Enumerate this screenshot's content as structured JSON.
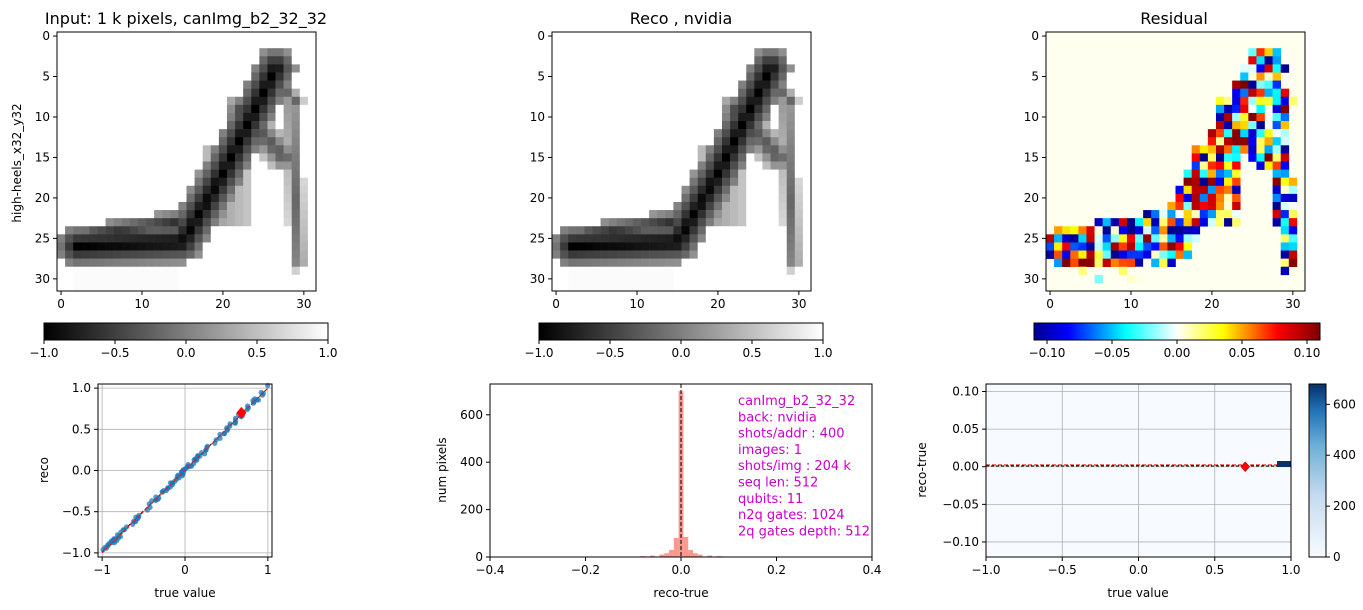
{
  "chart_data": [
    {
      "type": "heatmap",
      "title": "Input: 1 k pixels, canImg_b2_32_32",
      "ylabel": "high-heels_x32_y32",
      "xticks": [
        "0",
        "10",
        "20",
        "30"
      ],
      "yticks": [
        "0",
        "5",
        "10",
        "15",
        "20",
        "25",
        "30"
      ],
      "colorbar": {
        "range": [
          -1,
          1
        ],
        "ticks": [
          "−1.0",
          "−0.5",
          "0.0",
          "0.5",
          "1.0"
        ],
        "cmap": "gray"
      }
    },
    {
      "type": "heatmap",
      "title": "Reco , nvidia",
      "xticks": [
        "0",
        "10",
        "20",
        "30"
      ],
      "yticks": [
        "0",
        "5",
        "10",
        "15",
        "20",
        "25",
        "30"
      ],
      "colorbar": {
        "range": [
          -1,
          1
        ],
        "ticks": [
          "−1.0",
          "−0.5",
          "0.0",
          "0.5",
          "1.0"
        ],
        "cmap": "gray"
      }
    },
    {
      "type": "heatmap",
      "title": "Residual",
      "xticks": [
        "0",
        "10",
        "20",
        "30"
      ],
      "yticks": [
        "0",
        "5",
        "10",
        "15",
        "20",
        "25",
        "30"
      ],
      "colorbar": {
        "range": [
          -0.11,
          0.11
        ],
        "ticks": [
          "−0.10",
          "−0.05",
          "0.00",
          "0.05",
          "0.10"
        ],
        "cmap": "jet"
      }
    },
    {
      "type": "scatter",
      "xlabel": "true value",
      "ylabel": "reco",
      "xlim": [
        -1.05,
        1.05
      ],
      "ylim": [
        -1.05,
        1.05
      ],
      "xticks": [
        "−1",
        "0",
        "1"
      ],
      "yticks": [
        "−1.0",
        "−0.5",
        "0.0",
        "0.5",
        "1.0"
      ],
      "highlight": [
        0.68,
        0.7
      ],
      "grid": true
    },
    {
      "type": "bar",
      "xlabel": "reco-true",
      "ylabel": "num pixels",
      "xlim": [
        -0.4,
        0.4
      ],
      "ylim": [
        0,
        730
      ],
      "xticks": [
        "−0.4",
        "−0.2",
        "0.0",
        "0.2",
        "0.4"
      ],
      "yticks": [
        "0",
        "200",
        "400",
        "600"
      ],
      "centers": [
        -0.1,
        -0.08,
        -0.06,
        -0.04,
        -0.03,
        -0.02,
        -0.01,
        0.0,
        0.01,
        0.02,
        0.03,
        0.04,
        0.06,
        0.08,
        0.1
      ],
      "values": [
        2,
        4,
        6,
        10,
        16,
        30,
        80,
        700,
        85,
        30,
        16,
        10,
        6,
        4,
        2
      ],
      "annotation": [
        "canImg_b2_32_32",
        "back: nvidia",
        "shots/addr : 400",
        "images: 1",
        "shots/img : 204 k",
        "seq len: 512",
        "qubits: 11",
        "n2q gates: 1024",
        "2q gates depth: 512"
      ]
    },
    {
      "type": "heatmap",
      "xlabel": "true value",
      "ylabel": "reco-true",
      "xlim": [
        -1,
        1
      ],
      "ylim": [
        -0.12,
        0.11
      ],
      "xticks": [
        "−1.0",
        "−0.5",
        "0.0",
        "0.5",
        "1.0"
      ],
      "yticks": [
        "−0.10",
        "−0.05",
        "0.00",
        "0.05",
        "0.10"
      ],
      "highlight": [
        0.7,
        0.0
      ],
      "colorbar": {
        "range": [
          0,
          680
        ],
        "ticks": [
          "0",
          "200",
          "400",
          "600"
        ],
        "cmap": "Blues"
      },
      "grid": true
    }
  ]
}
